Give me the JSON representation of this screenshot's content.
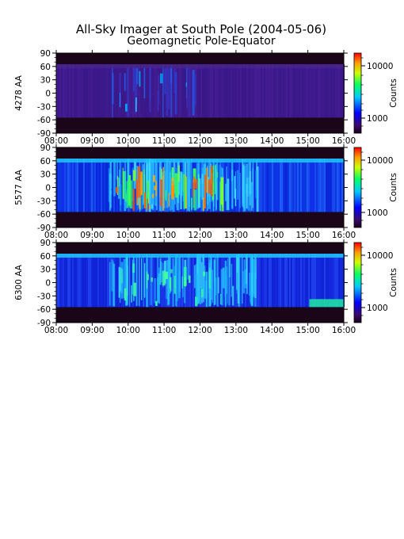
{
  "title": "All-Sky Imager at South Pole (2004-05-06)",
  "subtitle": "Geomagnetic Pole-Equator",
  "chart_data": [
    {
      "type": "heatmap",
      "ylabel": "4278 AA",
      "x_ticks": [
        "08:00",
        "09:00",
        "10:00",
        "11:00",
        "12:00",
        "13:00",
        "14:00",
        "15:00",
        "16:00"
      ],
      "y_ticks": [
        90,
        60,
        30,
        0,
        -30,
        -60,
        -90
      ],
      "ylim": [
        -90,
        90
      ],
      "colorbar": {
        "label": "Counts",
        "ticks": [
          "10000",
          "1000"
        ],
        "scale": "log"
      },
      "activity": "low",
      "valid_band": [
        -55,
        65
      ]
    },
    {
      "type": "heatmap",
      "ylabel": "5577 AA",
      "x_ticks": [
        "08:00",
        "09:00",
        "10:00",
        "11:00",
        "12:00",
        "13:00",
        "14:00",
        "15:00",
        "16:00"
      ],
      "y_ticks": [
        90,
        60,
        30,
        0,
        -30,
        -60,
        -90
      ],
      "ylim": [
        -90,
        90
      ],
      "colorbar": {
        "label": "Counts",
        "ticks": [
          "10000",
          "1000"
        ],
        "scale": "log"
      },
      "activity": "high",
      "valid_band": [
        -55,
        65
      ]
    },
    {
      "type": "heatmap",
      "ylabel": "6300 AA",
      "x_ticks": [
        "08:00",
        "09:00",
        "10:00",
        "11:00",
        "12:00",
        "13:00",
        "14:00",
        "15:00",
        "16:00"
      ],
      "y_ticks": [
        90,
        60,
        30,
        0,
        -30,
        -60,
        -90
      ],
      "ylim": [
        -90,
        90
      ],
      "colorbar": {
        "label": "Counts",
        "ticks": [
          "10000",
          "1000"
        ],
        "scale": "log"
      },
      "activity": "medium",
      "valid_band": [
        -55,
        65
      ]
    }
  ]
}
